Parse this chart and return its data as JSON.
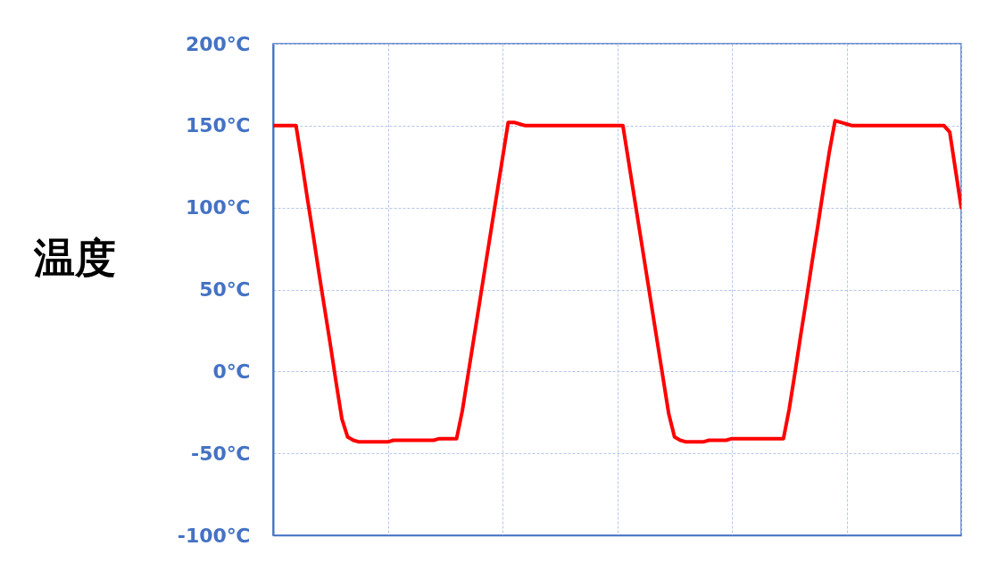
{
  "chart_data": {
    "type": "line",
    "ylabel": "温度",
    "categories": [
      null,
      null,
      null,
      null,
      null,
      null,
      null,
      null,
      null,
      null,
      null,
      null,
      null,
      null,
      null,
      null,
      null,
      null,
      null,
      null,
      null,
      null,
      null,
      null,
      null,
      null,
      null,
      null,
      null,
      null,
      null,
      null,
      null,
      null,
      null,
      null,
      null,
      null,
      null,
      null,
      null,
      null,
      null,
      null,
      null,
      null,
      null,
      null,
      null,
      null,
      null,
      null,
      null,
      null,
      null,
      null,
      null,
      null,
      null,
      null,
      null,
      null,
      null,
      null,
      null,
      null,
      null,
      null,
      null,
      null,
      null,
      null,
      null,
      null,
      null,
      null,
      null,
      null,
      null,
      null,
      null,
      null,
      null,
      null,
      null,
      null,
      null,
      null,
      null,
      null,
      null,
      null,
      null,
      null,
      null,
      null,
      null,
      null,
      null,
      null,
      null,
      null,
      null,
      null,
      null,
      null,
      null,
      null,
      null,
      null,
      null,
      null,
      null,
      null,
      null,
      null,
      null,
      null,
      null,
      null,
      null
    ],
    "series": [
      {
        "color": "#ff0000",
        "values": [
          150,
          150,
          150,
          150,
          150,
          128,
          105,
          83,
          60,
          38,
          16,
          -7,
          -29,
          -40,
          -42,
          -43,
          -43,
          -43,
          -43,
          -43,
          -43,
          -42,
          -42,
          -42,
          -42,
          -42,
          -42,
          -42,
          -42,
          -41,
          -41,
          -41,
          -41,
          -24,
          -2,
          20,
          42,
          64,
          86,
          108,
          130,
          152,
          152,
          151,
          150,
          150,
          150,
          150,
          150,
          150,
          150,
          150,
          150,
          150,
          150,
          150,
          150,
          150,
          150,
          150,
          150,
          150,
          128,
          106,
          84,
          62,
          40,
          18,
          -4,
          -26,
          -40,
          -42,
          -43,
          -43,
          -43,
          -43,
          -42,
          -42,
          -42,
          -42,
          -41,
          -41,
          -41,
          -41,
          -41,
          -41,
          -41,
          -41,
          -41,
          -41,
          -23,
          -1,
          22,
          44,
          67,
          89,
          112,
          134,
          153,
          152,
          151,
          150,
          150,
          150,
          150,
          150,
          150,
          150,
          150,
          150,
          150,
          150,
          150,
          150,
          150,
          150,
          150,
          150,
          146,
          123,
          100
        ]
      }
    ],
    "ylim": [
      -100,
      200
    ],
    "yticks": [
      {
        "value": -100,
        "label": "-100℃"
      },
      {
        "value": -50,
        "label": "-50℃"
      },
      {
        "value": 0,
        "label": "0℃"
      },
      {
        "value": 50,
        "label": "50℃"
      },
      {
        "value": 100,
        "label": "100℃"
      },
      {
        "value": 150,
        "label": "150℃"
      },
      {
        "value": 200,
        "label": "200℃"
      }
    ],
    "grid": true,
    "tick_labels": "y",
    "line_style": "solid"
  }
}
